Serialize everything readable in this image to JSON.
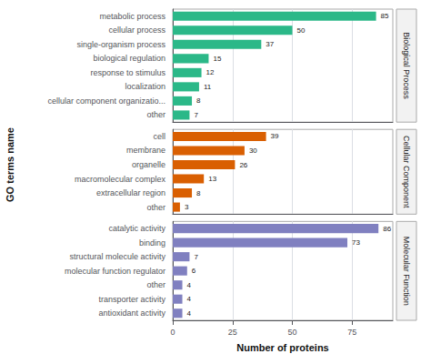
{
  "chart_data": [
    {
      "type": "bar",
      "orientation": "horizontal",
      "title": "Biological Process",
      "categories": [
        "metabolic process",
        "cellular process",
        "single-organism process",
        "biological regulation",
        "response to stimulus",
        "localization",
        "cellular component organizatio...",
        "other"
      ],
      "values": [
        85,
        50,
        37,
        15,
        12,
        11,
        8,
        7
      ],
      "color": "#2bb888",
      "xlim": [
        0,
        92
      ],
      "xticks": [
        0,
        25,
        50,
        75
      ],
      "grid": true,
      "data_labels": true,
      "tick_labels": "y"
    },
    {
      "type": "bar",
      "orientation": "horizontal",
      "title": "Cellular Component",
      "ylabel": "GO terms name",
      "categories": [
        "cell",
        "membrane",
        "organelle",
        "macromolecular complex",
        "extracellular region",
        "other"
      ],
      "values": [
        39,
        30,
        26,
        13,
        8,
        3
      ],
      "color": "#d95f02",
      "xlim": [
        0,
        92
      ],
      "xticks": [
        0,
        25,
        50,
        75
      ],
      "grid": true,
      "data_labels": true,
      "tick_labels": "y"
    },
    {
      "type": "bar",
      "orientation": "horizontal",
      "title": "Molecular Function",
      "xlabel": "Number of proteins",
      "categories": [
        "catalytic activity",
        "binding",
        "structural molecule activity",
        "molecular function regulator",
        "other",
        "transporter activity",
        "antioxidant activity"
      ],
      "values": [
        86,
        73,
        7,
        6,
        4,
        4,
        4
      ],
      "color": "#8080c0",
      "xlim": [
        0,
        92
      ],
      "xticks": [
        0,
        25,
        50,
        75
      ],
      "grid": true,
      "data_labels": true
    }
  ]
}
